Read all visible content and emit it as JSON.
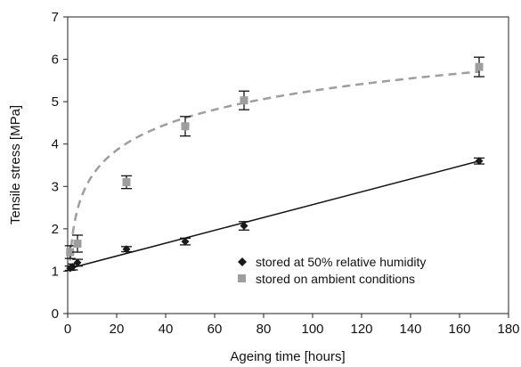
{
  "chart_data": {
    "type": "scatter",
    "xlabel": "Ageing time [hours]",
    "ylabel": "Tensile stress [MPa]",
    "xlim": [
      0,
      180
    ],
    "ylim": [
      0,
      7
    ],
    "x_ticks": [
      0,
      20,
      40,
      60,
      80,
      100,
      120,
      140,
      160,
      180
    ],
    "y_ticks": [
      0,
      1,
      2,
      3,
      4,
      5,
      6,
      7
    ],
    "grid": false,
    "legend_position": "bottom-right",
    "series": [
      {
        "name": "stored at 50% relative humidity",
        "marker": "diamond",
        "color": "#1a1a1a",
        "x": [
          1,
          2,
          4,
          24,
          48,
          72,
          168
        ],
        "y": [
          1.07,
          1.1,
          1.2,
          1.52,
          1.7,
          2.07,
          3.6
        ],
        "err": [
          0.05,
          0.07,
          0.08,
          0.06,
          0.08,
          0.1,
          0.07
        ],
        "fit": {
          "kind": "linear",
          "color": "#111111",
          "from": [
            1,
            1.07
          ],
          "to": [
            168,
            3.6
          ]
        }
      },
      {
        "name": "stored on ambient conditions",
        "marker": "square",
        "color": "#9e9e9e",
        "x": [
          1,
          4,
          24,
          48,
          72,
          168
        ],
        "y": [
          1.45,
          1.65,
          3.1,
          4.42,
          5.03,
          5.82
        ],
        "err": [
          0.15,
          0.2,
          0.15,
          0.23,
          0.22,
          0.23
        ],
        "fit": {
          "kind": "logarithmic",
          "color": "#9e9e9e",
          "dashed": true,
          "from_x": 1,
          "to_x": 168,
          "a": 1.25,
          "b": 0.87
        }
      }
    ]
  }
}
